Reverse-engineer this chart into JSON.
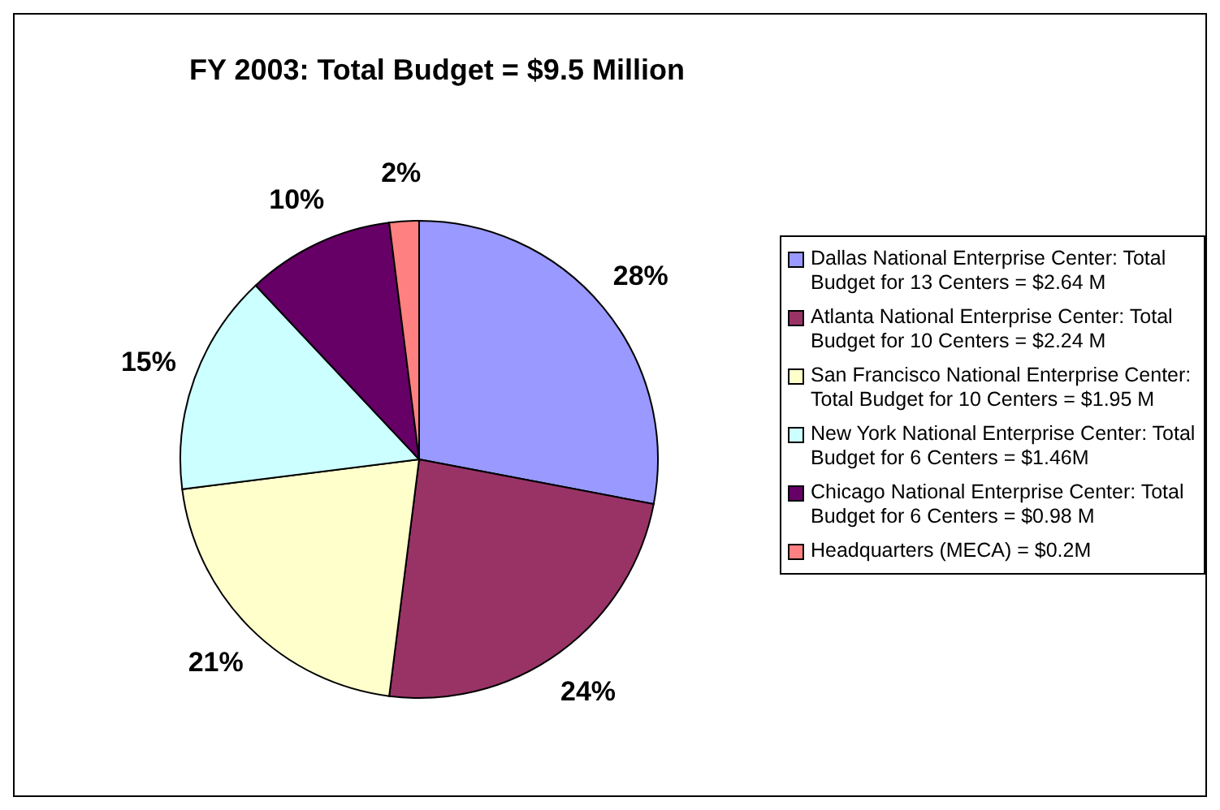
{
  "chart_data": {
    "type": "pie",
    "title": "FY 2003:  Total Budget = $9.5 Million",
    "categories": [
      "Dallas National Enterprise Center:  Total Budget for 13 Centers = $2.64 M",
      "Atlanta National Enterprise Center:  Total Budget for 10 Centers = $2.24 M",
      "San Francisco National Enterprise Center:  Total Budget for 10 Centers = $1.95 M",
      "New York National Enterprise Center:  Total Budget for 6 Centers = $1.46M",
      "Chicago National Enterprise Center:  Total Budget for 6 Centers = $0.98 M",
      "Headquarters (MECA) = $0.2M"
    ],
    "values": [
      28,
      24,
      21,
      15,
      10,
      2
    ],
    "value_labels": [
      "28%",
      "24%",
      "21%",
      "15%",
      "10%",
      "2%"
    ],
    "colors": [
      "#9999ff",
      "#993366",
      "#ffffcc",
      "#ccffff",
      "#660066",
      "#ff8080"
    ],
    "legend": "right"
  }
}
